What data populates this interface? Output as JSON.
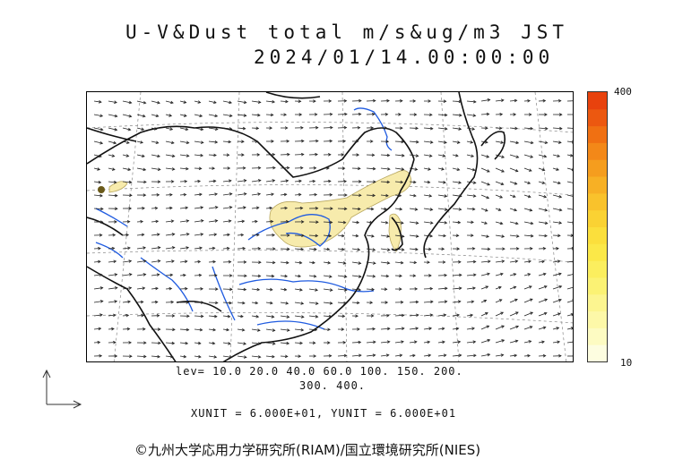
{
  "title": {
    "line1": "U-V&Dust total m/s&ug/m3 JST",
    "line2": "2024/01/14.00:00:00"
  },
  "levels": {
    "line1": "lev= 10.0 20.0 40.0 60.0 100. 150. 200.",
    "line2": "300. 400."
  },
  "units": "XUNIT = 6.000E+01, YUNIT = 6.000E+01",
  "colorbar": {
    "max_label": "400",
    "min_label": "10",
    "colors": [
      "#fdfde0",
      "#fdfbc2",
      "#fdf8a8",
      "#fcf590",
      "#fbf274",
      "#fbee5e",
      "#fbe848",
      "#fbdf3c",
      "#fad233",
      "#f9c22c",
      "#f7b025",
      "#f59d1e",
      "#f38818",
      "#f07012",
      "#ec5810",
      "#e8420d"
    ]
  },
  "copyright": "©九州大学応用力学研究所(RIAM)/国立環境研究所(NIES)"
}
